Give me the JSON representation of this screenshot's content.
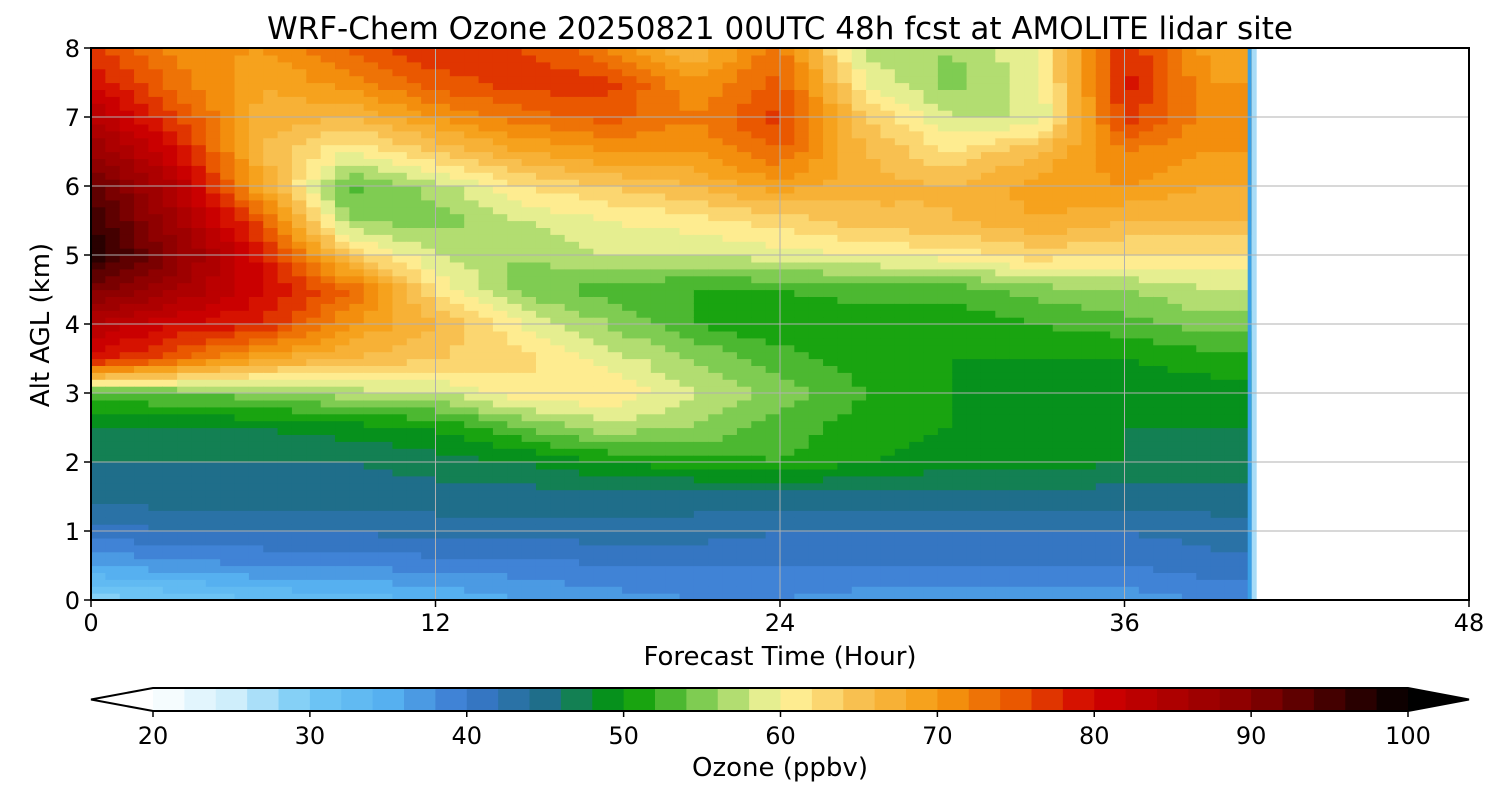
{
  "chart_data": {
    "type": "heatmap",
    "title": "WRF-Chem Ozone  20250821 00UTC 48h fcst at AMOLITE lidar site",
    "xlabel": "Forecast Time (Hour)",
    "ylabel": "Alt AGL (km)",
    "xlim": [
      0,
      48
    ],
    "ylim": [
      0,
      8
    ],
    "xticks": [
      0,
      12,
      24,
      36,
      48
    ],
    "yticks": [
      0,
      1,
      2,
      3,
      4,
      5,
      6,
      7,
      8
    ],
    "grid": true,
    "data_extent_hours": 40.5,
    "x_hours": [
      0,
      3,
      6,
      9,
      12,
      15,
      18,
      21,
      24,
      27,
      30,
      33,
      36,
      39
    ],
    "y_km": [
      0,
      0.5,
      1,
      1.5,
      2,
      2.5,
      3,
      3.5,
      4,
      4.5,
      5,
      5.5,
      6,
      6.5,
      7,
      7.5,
      8
    ],
    "values_ppbv": [
      [
        29,
        30,
        32,
        33,
        34,
        36,
        37,
        38,
        38,
        37,
        37,
        37,
        37,
        38
      ],
      [
        36,
        37,
        38,
        38,
        39,
        39,
        40,
        40,
        40,
        40,
        40,
        40,
        40,
        41
      ],
      [
        41,
        42,
        42,
        42,
        43,
        43,
        43,
        43,
        42,
        42,
        42,
        42,
        42,
        43
      ],
      [
        45,
        45,
        45,
        45,
        45,
        45,
        45,
        45,
        45,
        45,
        45,
        45,
        45,
        45
      ],
      [
        46,
        46,
        46,
        46,
        47,
        48,
        50,
        51,
        52,
        50,
        49,
        49,
        48,
        47
      ],
      [
        48,
        48,
        48,
        49,
        50,
        54,
        57,
        56,
        53,
        51,
        50,
        49,
        48,
        48
      ],
      [
        53,
        54,
        55,
        57,
        58,
        61,
        62,
        58,
        55,
        52,
        50,
        49,
        49,
        49
      ],
      [
        80,
        74,
        68,
        66,
        64,
        63,
        59,
        56,
        53,
        51,
        50,
        50,
        50,
        51
      ],
      [
        84,
        80,
        78,
        70,
        66,
        60,
        56,
        52,
        50,
        51,
        50,
        52,
        53,
        55
      ],
      [
        91,
        86,
        80,
        74,
        62,
        55,
        53,
        52,
        52,
        53,
        53,
        55,
        56,
        58
      ],
      [
        98,
        89,
        79,
        64,
        58,
        56,
        58,
        58,
        59,
        60,
        61,
        63,
        62,
        62
      ],
      [
        96,
        86,
        75,
        56,
        55,
        58,
        60,
        61,
        63,
        65,
        66,
        68,
        66,
        66
      ],
      [
        93,
        84,
        68,
        53,
        57,
        62,
        64,
        66,
        69,
        67,
        66,
        69,
        70,
        68
      ],
      [
        88,
        80,
        66,
        60,
        64,
        68,
        70,
        70,
        74,
        66,
        62,
        66,
        72,
        70
      ],
      [
        84,
        76,
        67,
        66,
        70,
        73,
        75,
        72,
        77,
        64,
        58,
        58,
        77,
        71
      ],
      [
        80,
        73,
        68,
        71,
        75,
        77,
        77,
        70,
        75,
        60,
        55,
        59,
        79,
        70
      ],
      [
        77,
        71,
        70,
        74,
        78,
        76,
        72,
        66,
        73,
        57,
        56,
        60,
        78,
        69
      ]
    ],
    "colorbar": {
      "label": "Ozone  (ppbv)",
      "min": 20,
      "max": 100,
      "ticks": [
        20,
        30,
        40,
        50,
        60,
        70,
        80,
        90,
        100
      ],
      "extend": "both",
      "location": "bottom"
    },
    "colormap": [
      {
        "v": 20,
        "c": "#ffffff"
      },
      {
        "v": 25,
        "c": "#cfeefb"
      },
      {
        "v": 30,
        "c": "#72c8f5"
      },
      {
        "v": 35,
        "c": "#56b0f0"
      },
      {
        "v": 40,
        "c": "#3a78d0"
      },
      {
        "v": 45,
        "c": "#1f6e8a"
      },
      {
        "v": 50,
        "c": "#009a00"
      },
      {
        "v": 55,
        "c": "#7fcc52"
      },
      {
        "v": 60,
        "c": "#fff7a0"
      },
      {
        "v": 65,
        "c": "#f8c050"
      },
      {
        "v": 70,
        "c": "#f59b10"
      },
      {
        "v": 75,
        "c": "#ea5800"
      },
      {
        "v": 80,
        "c": "#d10000"
      },
      {
        "v": 90,
        "c": "#880000"
      },
      {
        "v": 100,
        "c": "#000000"
      }
    ]
  }
}
